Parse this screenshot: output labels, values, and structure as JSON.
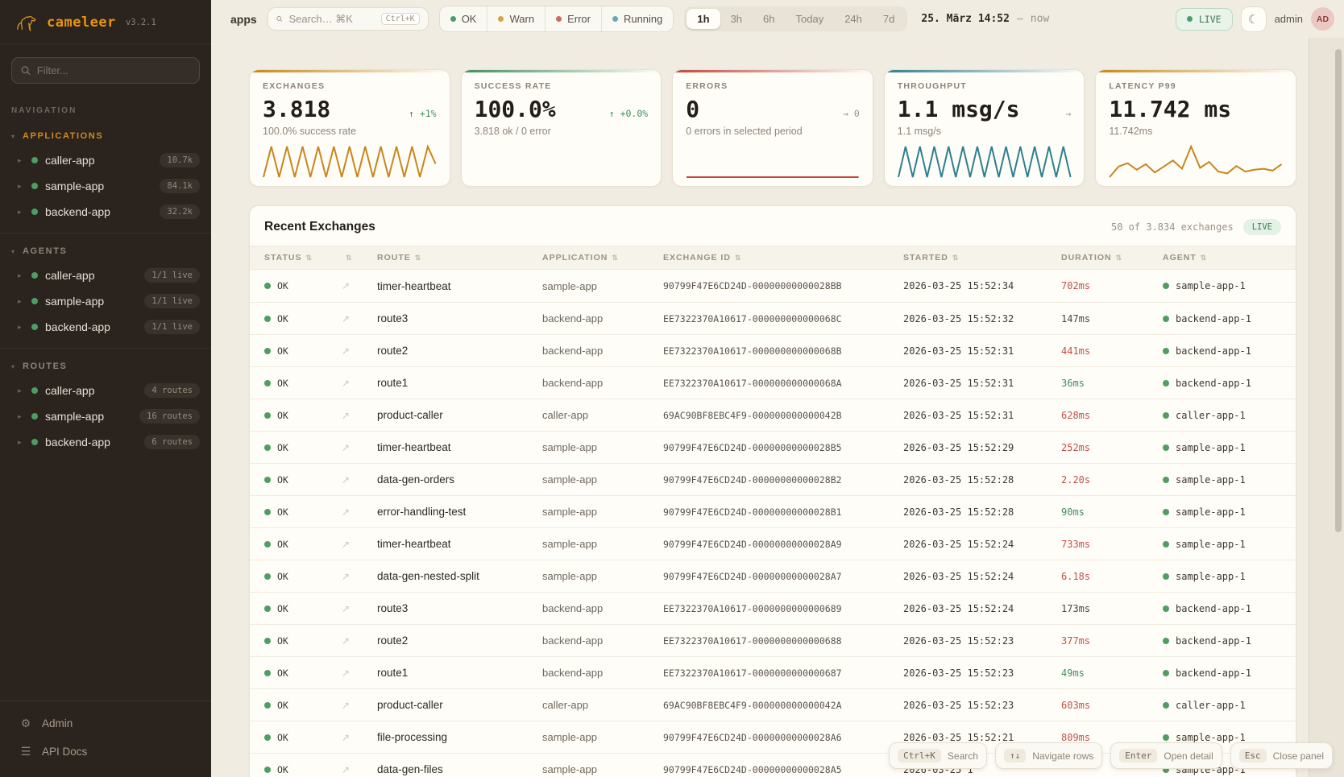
{
  "brand": {
    "name": "cameleer",
    "version": "v3.2.1"
  },
  "sidebar": {
    "filter_placeholder": "Filter...",
    "nav_label": "NAVIGATION",
    "sections": [
      {
        "label": "APPLICATIONS",
        "accent": true,
        "items": [
          {
            "name": "caller-app",
            "badge": "10.7k"
          },
          {
            "name": "sample-app",
            "badge": "84.1k"
          },
          {
            "name": "backend-app",
            "badge": "32.2k"
          }
        ]
      },
      {
        "label": "AGENTS",
        "accent": false,
        "items": [
          {
            "name": "caller-app",
            "badge": "1/1 live"
          },
          {
            "name": "sample-app",
            "badge": "1/1 live"
          },
          {
            "name": "backend-app",
            "badge": "1/1 live"
          }
        ]
      },
      {
        "label": "ROUTES",
        "accent": false,
        "items": [
          {
            "name": "caller-app",
            "badge": "4 routes"
          },
          {
            "name": "sample-app",
            "badge": "16 routes"
          },
          {
            "name": "backend-app",
            "badge": "6 routes"
          }
        ]
      }
    ],
    "footer": [
      {
        "label": "Admin",
        "icon": "gear"
      },
      {
        "label": "API Docs",
        "icon": "list"
      }
    ]
  },
  "header": {
    "context": "apps",
    "search_placeholder": "Search… ⌘K",
    "search_kbd": "Ctrl+K",
    "status_filters": [
      {
        "label": "OK",
        "color": "#4a9e68"
      },
      {
        "label": "Warn",
        "color": "#d9a441"
      },
      {
        "label": "Error",
        "color": "#cd6a5a"
      },
      {
        "label": "Running",
        "color": "#6aa8b8"
      }
    ],
    "time_ranges": [
      {
        "label": "1h",
        "active": true
      },
      {
        "label": "3h",
        "active": false
      },
      {
        "label": "6h",
        "active": false
      },
      {
        "label": "Today",
        "active": false
      },
      {
        "label": "24h",
        "active": false
      },
      {
        "label": "7d",
        "active": false
      }
    ],
    "time_display": {
      "from": "25. März 14:52",
      "separator": "—",
      "to": "now"
    },
    "live_label": "LIVE",
    "user": "admin",
    "avatar": "AD"
  },
  "stats": [
    {
      "title": "EXCHANGES",
      "value": "3.818",
      "delta": "↑ +1%",
      "delta_color": "green",
      "subtitle": "100.0% success rate",
      "accent": "#c8861a",
      "spark": 0
    },
    {
      "title": "SUCCESS RATE",
      "value": "100.0%",
      "delta": "↑ +0.0%",
      "delta_color": "green",
      "subtitle": "3.818 ok / 0 error",
      "accent": "#3d8f5f",
      "spark": null
    },
    {
      "title": "ERRORS",
      "value": "0",
      "delta": "→ 0",
      "delta_color": "gray",
      "subtitle": "0 errors in selected period",
      "accent": "#c0473a",
      "spark": 1
    },
    {
      "title": "THROUGHPUT",
      "value": "1.1 msg/s",
      "delta": "→",
      "delta_color": "gray",
      "subtitle": "1.1 msg/s",
      "accent": "#2e7f8f",
      "spark": 2
    },
    {
      "title": "LATENCY P99",
      "value": "11.742 ms",
      "delta": "",
      "delta_color": "gray",
      "subtitle": "11.742ms",
      "accent": "#c8861a",
      "spark": 3
    }
  ],
  "chart_data": [
    {
      "type": "line",
      "name": "exchanges-sparkline",
      "color": "#c8861a",
      "values": [
        12,
        88,
        12,
        88,
        12,
        88,
        12,
        88,
        12,
        88,
        12,
        88,
        12,
        88,
        12,
        88,
        12,
        88,
        12,
        88,
        12,
        88,
        45
      ]
    },
    {
      "type": "line",
      "name": "errors-sparkline",
      "color": "#c0473a",
      "values": [
        0,
        0
      ]
    },
    {
      "type": "line",
      "name": "throughput-sparkline",
      "color": "#2e7f8f",
      "values": [
        12,
        85,
        12,
        85,
        12,
        85,
        12,
        85,
        12,
        85,
        12,
        85,
        12,
        85,
        12,
        85,
        12,
        85,
        12,
        85,
        12,
        85,
        12,
        85,
        12
      ]
    },
    {
      "type": "line",
      "name": "latency-sparkline",
      "color": "#c8861a",
      "values": [
        22,
        45,
        52,
        38,
        50,
        32,
        45,
        58,
        40,
        88,
        42,
        55,
        34,
        30,
        46,
        34,
        38,
        40,
        36,
        50
      ]
    }
  ],
  "table": {
    "title": "Recent Exchanges",
    "summary": "50 of 3.834 exchanges",
    "live_label": "LIVE",
    "columns": [
      "STATUS",
      "",
      "ROUTE",
      "APPLICATION",
      "EXCHANGE ID",
      "STARTED",
      "DURATION",
      "AGENT"
    ],
    "rows": [
      {
        "status": "OK",
        "route": "timer-heartbeat",
        "application": "sample-app",
        "exchange_id": "90799F47E6CD24D-00000000000028BB",
        "started": "2026-03-25 15:52:34",
        "duration": "702ms",
        "duration_color": "red",
        "agent": "sample-app-1"
      },
      {
        "status": "OK",
        "route": "route3",
        "application": "backend-app",
        "exchange_id": "EE7322370A10617-000000000000068C",
        "started": "2026-03-25 15:52:32",
        "duration": "147ms",
        "duration_color": "neutral",
        "agent": "backend-app-1"
      },
      {
        "status": "OK",
        "route": "route2",
        "application": "backend-app",
        "exchange_id": "EE7322370A10617-000000000000068B",
        "started": "2026-03-25 15:52:31",
        "duration": "441ms",
        "duration_color": "red",
        "agent": "backend-app-1"
      },
      {
        "status": "OK",
        "route": "route1",
        "application": "backend-app",
        "exchange_id": "EE7322370A10617-000000000000068A",
        "started": "2026-03-25 15:52:31",
        "duration": "36ms",
        "duration_color": "green",
        "agent": "backend-app-1"
      },
      {
        "status": "OK",
        "route": "product-caller",
        "application": "caller-app",
        "exchange_id": "69AC90BF8EBC4F9-000000000000042B",
        "started": "2026-03-25 15:52:31",
        "duration": "628ms",
        "duration_color": "red",
        "agent": "caller-app-1"
      },
      {
        "status": "OK",
        "route": "timer-heartbeat",
        "application": "sample-app",
        "exchange_id": "90799F47E6CD24D-00000000000028B5",
        "started": "2026-03-25 15:52:29",
        "duration": "252ms",
        "duration_color": "red",
        "agent": "sample-app-1"
      },
      {
        "status": "OK",
        "route": "data-gen-orders",
        "application": "sample-app",
        "exchange_id": "90799F47E6CD24D-00000000000028B2",
        "started": "2026-03-25 15:52:28",
        "duration": "2.20s",
        "duration_color": "red",
        "agent": "sample-app-1"
      },
      {
        "status": "OK",
        "route": "error-handling-test",
        "application": "sample-app",
        "exchange_id": "90799F47E6CD24D-00000000000028B1",
        "started": "2026-03-25 15:52:28",
        "duration": "90ms",
        "duration_color": "green",
        "agent": "sample-app-1"
      },
      {
        "status": "OK",
        "route": "timer-heartbeat",
        "application": "sample-app",
        "exchange_id": "90799F47E6CD24D-00000000000028A9",
        "started": "2026-03-25 15:52:24",
        "duration": "733ms",
        "duration_color": "red",
        "agent": "sample-app-1"
      },
      {
        "status": "OK",
        "route": "data-gen-nested-split",
        "application": "sample-app",
        "exchange_id": "90799F47E6CD24D-00000000000028A7",
        "started": "2026-03-25 15:52:24",
        "duration": "6.18s",
        "duration_color": "red",
        "agent": "sample-app-1"
      },
      {
        "status": "OK",
        "route": "route3",
        "application": "backend-app",
        "exchange_id": "EE7322370A10617-0000000000000689",
        "started": "2026-03-25 15:52:24",
        "duration": "173ms",
        "duration_color": "neutral",
        "agent": "backend-app-1"
      },
      {
        "status": "OK",
        "route": "route2",
        "application": "backend-app",
        "exchange_id": "EE7322370A10617-0000000000000688",
        "started": "2026-03-25 15:52:23",
        "duration": "377ms",
        "duration_color": "red",
        "agent": "backend-app-1"
      },
      {
        "status": "OK",
        "route": "route1",
        "application": "backend-app",
        "exchange_id": "EE7322370A10617-0000000000000687",
        "started": "2026-03-25 15:52:23",
        "duration": "49ms",
        "duration_color": "green",
        "agent": "backend-app-1"
      },
      {
        "status": "OK",
        "route": "product-caller",
        "application": "caller-app",
        "exchange_id": "69AC90BF8EBC4F9-000000000000042A",
        "started": "2026-03-25 15:52:23",
        "duration": "603ms",
        "duration_color": "red",
        "agent": "caller-app-1"
      },
      {
        "status": "OK",
        "route": "file-processing",
        "application": "sample-app",
        "exchange_id": "90799F47E6CD24D-00000000000028A6",
        "started": "2026-03-25 15:52:21",
        "duration": "809ms",
        "duration_color": "red",
        "agent": "sample-app-1"
      },
      {
        "status": "OK",
        "route": "data-gen-files",
        "application": "sample-app",
        "exchange_id": "90799F47E6CD24D-00000000000028A5",
        "started": "2026-03-25 1",
        "duration": "",
        "duration_color": "neutral",
        "agent": "sample-app-1"
      }
    ]
  },
  "hints": [
    {
      "kbd": "Ctrl+K",
      "label": "Search"
    },
    {
      "kbd": "↑↓",
      "label": "Navigate rows"
    },
    {
      "kbd": "Enter",
      "label": "Open detail"
    },
    {
      "kbd": "Esc",
      "label": "Close panel"
    }
  ]
}
